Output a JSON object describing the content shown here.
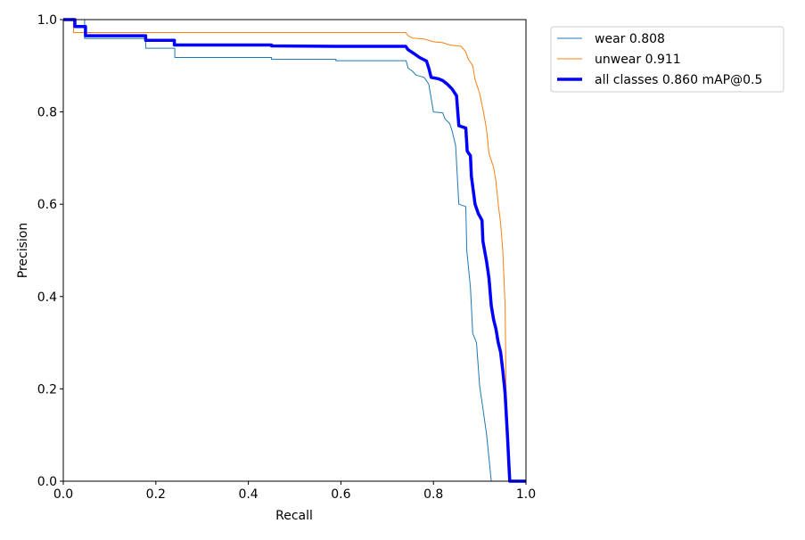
{
  "chart_data": {
    "type": "line",
    "title": "",
    "xlabel": "Recall",
    "ylabel": "Precision",
    "xlim": [
      0,
      1
    ],
    "ylim": [
      0,
      1
    ],
    "xticks": [
      "0.0",
      "0.2",
      "0.4",
      "0.6",
      "0.8",
      "1.0"
    ],
    "yticks": [
      "0.0",
      "0.2",
      "0.4",
      "0.6",
      "0.8",
      "1.0"
    ],
    "grid": false,
    "legend_position": "outside-top-right",
    "series": [
      {
        "name": "wear 0.808",
        "color": "#1f77b4",
        "x": [
          0,
          0.046,
          0.046,
          0.178,
          0.178,
          0.241,
          0.241,
          0.45,
          0.45,
          0.589,
          0.589,
          0.741,
          0.745,
          0.755,
          0.762,
          0.78,
          0.79,
          0.795,
          0.8,
          0.82,
          0.825,
          0.835,
          0.84,
          0.848,
          0.855,
          0.87,
          0.872,
          0.88,
          0.885,
          0.893,
          0.9,
          0.907,
          0.915,
          0.925
        ],
        "y": [
          1.0,
          1.0,
          0.959,
          0.959,
          0.938,
          0.938,
          0.918,
          0.918,
          0.914,
          0.914,
          0.911,
          0.911,
          0.895,
          0.888,
          0.88,
          0.875,
          0.86,
          0.83,
          0.8,
          0.798,
          0.785,
          0.775,
          0.76,
          0.727,
          0.6,
          0.595,
          0.5,
          0.42,
          0.32,
          0.3,
          0.205,
          0.158,
          0.1,
          0.0
        ]
      },
      {
        "name": "unwear 0.911",
        "color": "#ff7f0e",
        "x": [
          0,
          0.022,
          0.022,
          0.74,
          0.745,
          0.755,
          0.78,
          0.8,
          0.82,
          0.835,
          0.86,
          0.87,
          0.875,
          0.885,
          0.89,
          0.9,
          0.91,
          0.915,
          0.92,
          0.93,
          0.935,
          0.94,
          0.945,
          0.95,
          0.955,
          0.957,
          0.965
        ],
        "y": [
          1.0,
          1.0,
          0.972,
          0.972,
          0.965,
          0.96,
          0.958,
          0.952,
          0.95,
          0.945,
          0.942,
          0.93,
          0.915,
          0.9,
          0.87,
          0.84,
          0.79,
          0.76,
          0.71,
          0.68,
          0.65,
          0.6,
          0.56,
          0.5,
          0.38,
          0.2,
          0.0
        ]
      },
      {
        "name": "all classes 0.860 mAP@0.5",
        "color": "#0000ff",
        "x": [
          0,
          0.025,
          0.025,
          0.048,
          0.048,
          0.178,
          0.178,
          0.24,
          0.24,
          0.45,
          0.45,
          0.59,
          0.74,
          0.745,
          0.76,
          0.77,
          0.785,
          0.79,
          0.795,
          0.81,
          0.82,
          0.83,
          0.84,
          0.85,
          0.855,
          0.87,
          0.873,
          0.88,
          0.882,
          0.89,
          0.897,
          0.905,
          0.907,
          0.915,
          0.92,
          0.925,
          0.93,
          0.935,
          0.94,
          0.945,
          0.95,
          0.955,
          0.96,
          0.965,
          1.0
        ],
        "y": [
          1.0,
          1.0,
          0.985,
          0.985,
          0.965,
          0.965,
          0.955,
          0.955,
          0.945,
          0.945,
          0.943,
          0.942,
          0.942,
          0.935,
          0.925,
          0.918,
          0.91,
          0.895,
          0.875,
          0.872,
          0.868,
          0.86,
          0.85,
          0.835,
          0.77,
          0.765,
          0.715,
          0.705,
          0.66,
          0.6,
          0.58,
          0.565,
          0.52,
          0.475,
          0.44,
          0.38,
          0.35,
          0.33,
          0.3,
          0.28,
          0.24,
          0.19,
          0.1,
          0.0,
          0.0
        ]
      }
    ]
  }
}
